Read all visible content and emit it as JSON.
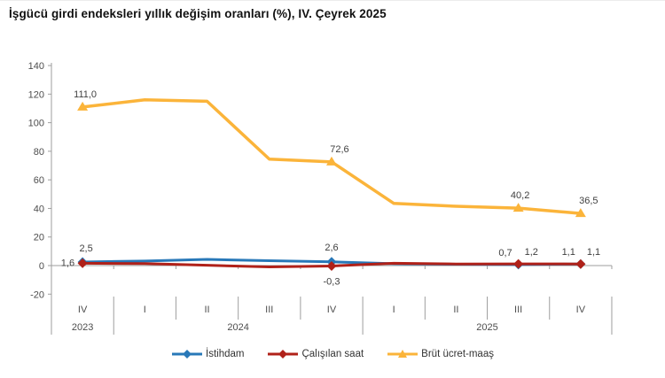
{
  "title": "İşgücü girdi endeksleri yıllık değişim oranları (%), IV. Çeyrek 2025",
  "chart_data": {
    "type": "line",
    "title": "İşgücü girdi endeksleri yıllık değişim oranları (%), IV. Çeyrek 2025",
    "xlabel": "",
    "ylabel": "",
    "ylim": [
      -20,
      140
    ],
    "yticks": [
      140,
      120,
      100,
      80,
      60,
      40,
      20,
      0,
      -20
    ],
    "grid": false,
    "legend_position": "bottom-center",
    "categories": [
      "IV",
      "I",
      "II",
      "III",
      "IV",
      "I",
      "II",
      "III",
      "IV"
    ],
    "year_groups": [
      {
        "label": "2023",
        "span": 1
      },
      {
        "label": "2024",
        "span": 4
      },
      {
        "label": "2025",
        "span": 4
      }
    ],
    "marker_indices": [
      0,
      4,
      7,
      8
    ],
    "series": [
      {
        "name": "İstihdam",
        "color": "#2878B8",
        "marker": "diamond",
        "values": [
          2.5,
          3.2,
          4.3,
          3.4,
          2.6,
          1.3,
          0.9,
          0.7,
          1.1
        ],
        "labels": [
          {
            "i": 0,
            "text": "2,5",
            "dx": 4,
            "dy": -12,
            "anchor": "middle"
          },
          {
            "i": 4,
            "text": "2,6",
            "dx": 0,
            "dy": -13,
            "anchor": "middle"
          },
          {
            "i": 7,
            "text": "0,7",
            "dx": -7,
            "dy": -10,
            "anchor": "end"
          },
          {
            "i": 8,
            "text": "1,1",
            "dx": -6,
            "dy": -10,
            "anchor": "end"
          }
        ]
      },
      {
        "name": "Çalışılan saat",
        "color": "#B02119",
        "marker": "diamond",
        "values": [
          1.6,
          1.4,
          0.2,
          -0.9,
          -0.3,
          1.6,
          1.1,
          1.2,
          1.1
        ],
        "labels": [
          {
            "i": 0,
            "text": "1,6",
            "dx": -9,
            "dy": 3,
            "anchor": "end"
          },
          {
            "i": 4,
            "text": "-0,3",
            "dx": 0,
            "dy": 21,
            "anchor": "middle"
          },
          {
            "i": 7,
            "text": "1,2",
            "dx": 7,
            "dy": -10,
            "anchor": "start"
          },
          {
            "i": 8,
            "text": "1,1",
            "dx": 7,
            "dy": -10,
            "anchor": "start"
          }
        ]
      },
      {
        "name": "Brüt ücret-maaş",
        "color": "#FBB43A",
        "marker": "triangle",
        "values": [
          111.0,
          116.0,
          115.0,
          74.5,
          72.6,
          43.5,
          41.5,
          40.2,
          36.5
        ],
        "labels": [
          {
            "i": 0,
            "text": "111,0",
            "dx": 3,
            "dy": -11,
            "anchor": "middle"
          },
          {
            "i": 4,
            "text": "72,6",
            "dx": 9,
            "dy": -11,
            "anchor": "middle"
          },
          {
            "i": 7,
            "text": "40,2",
            "dx": 2,
            "dy": -11,
            "anchor": "middle"
          },
          {
            "i": 8,
            "text": "36,5",
            "dx": 9,
            "dy": -11,
            "anchor": "middle"
          }
        ]
      }
    ],
    "colors": {
      "axis": "#9e9e9e",
      "tick_label": "#4d4d4d",
      "data_label": "#3f3f3f"
    }
  }
}
